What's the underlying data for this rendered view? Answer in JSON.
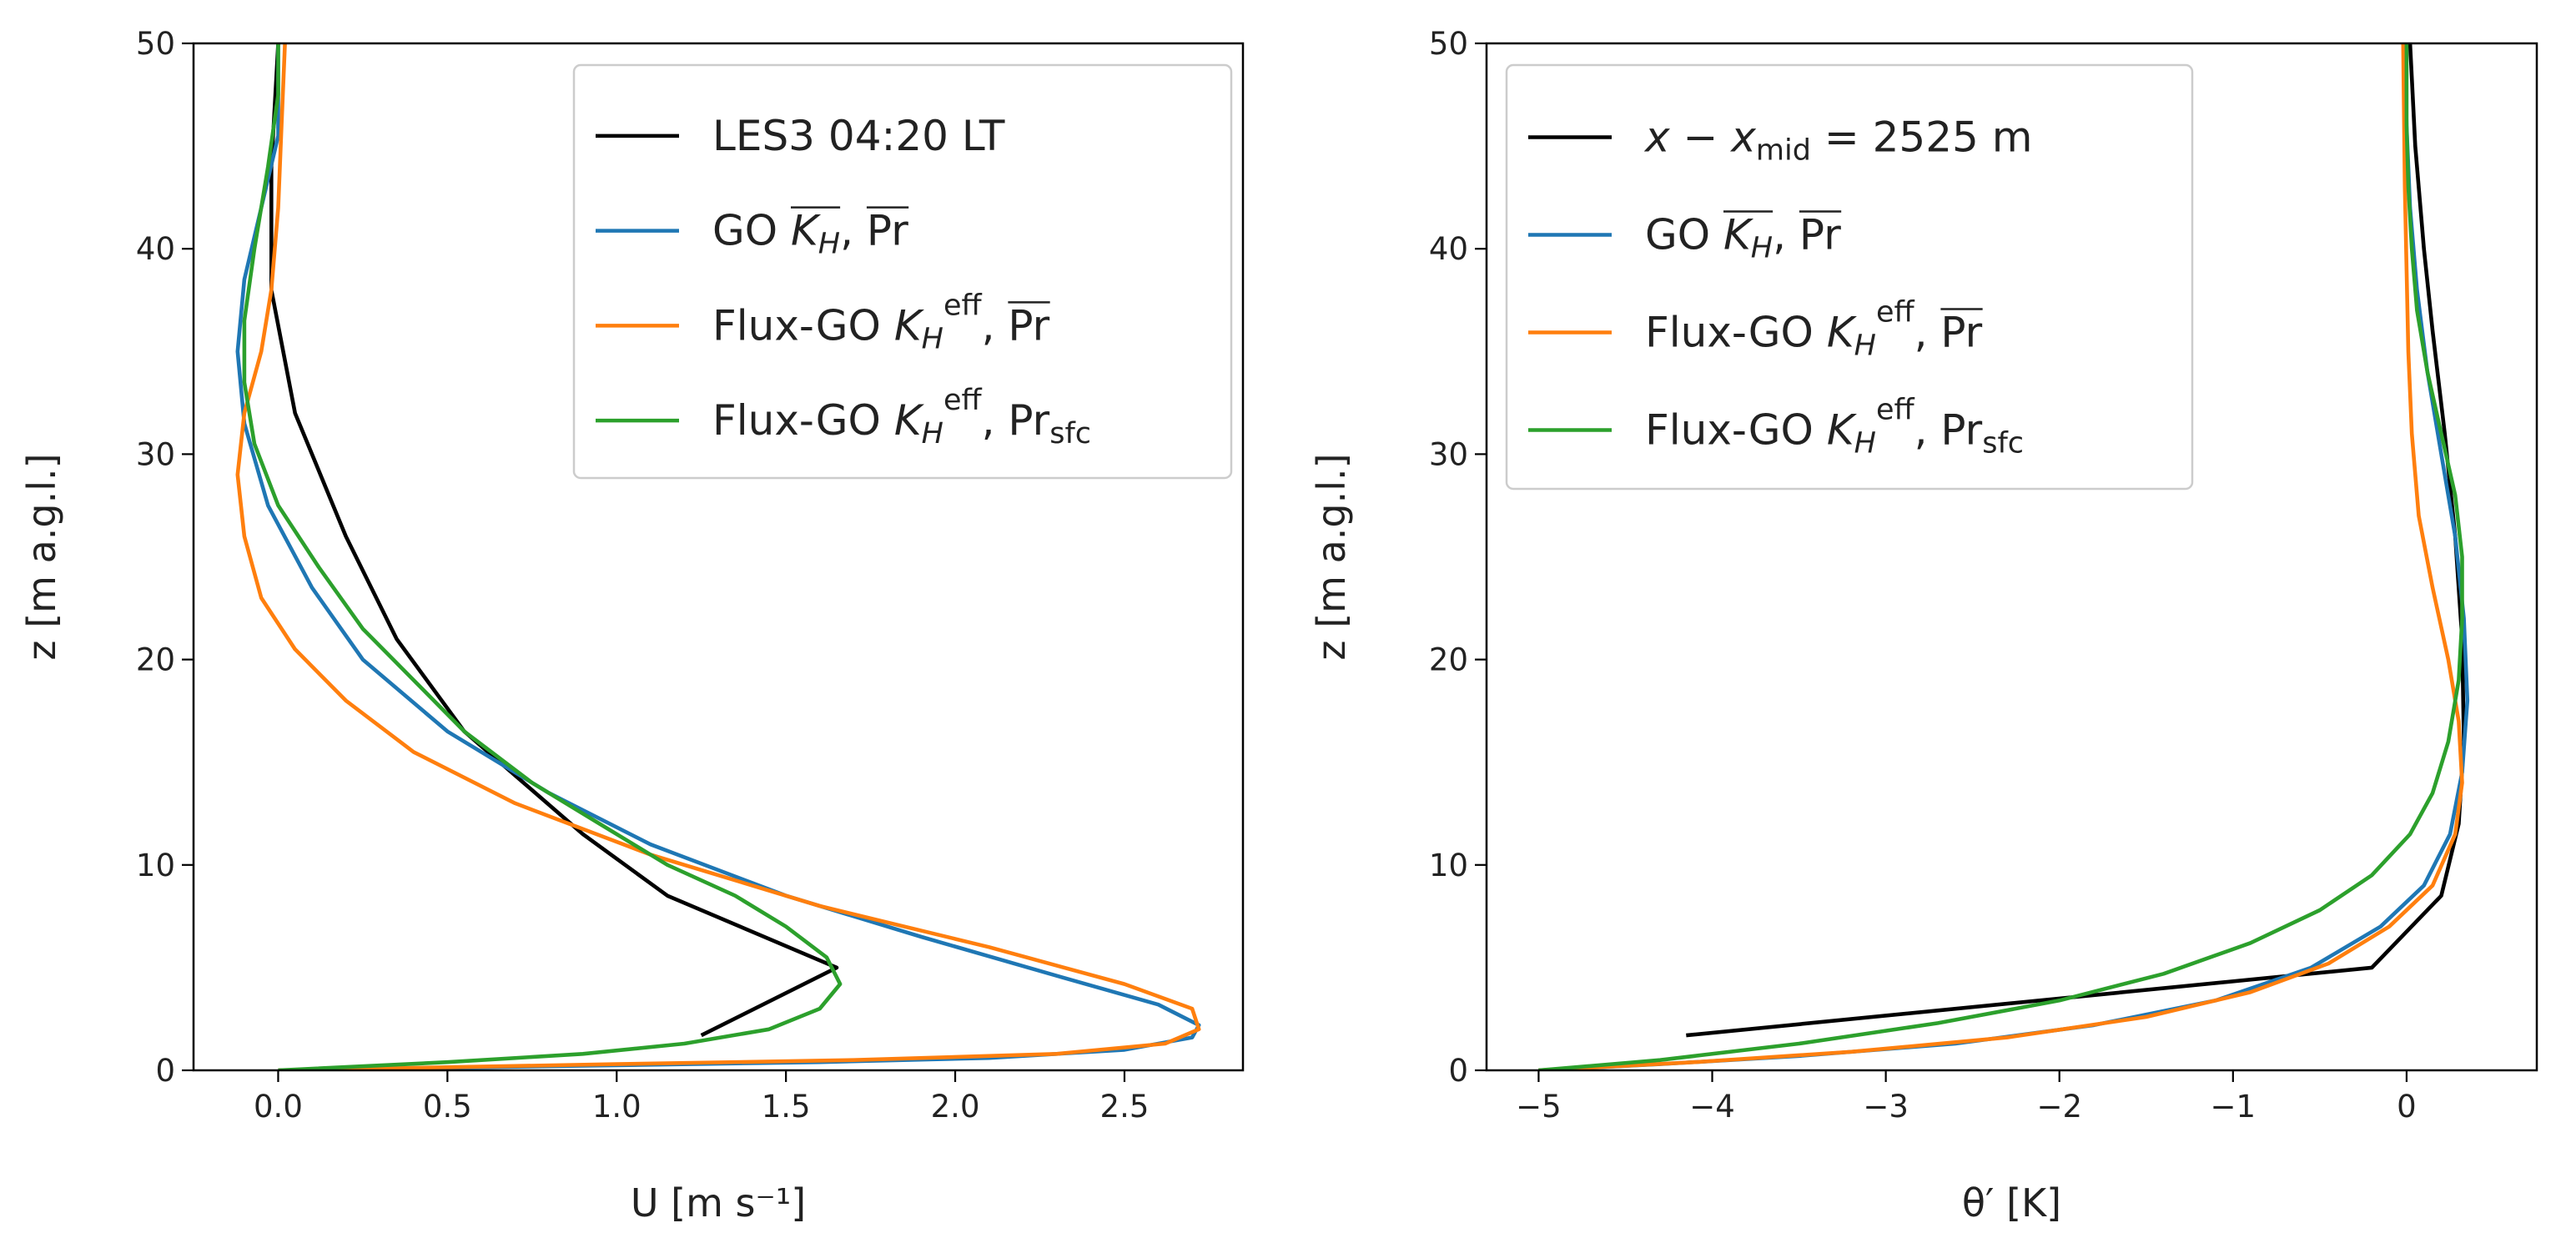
{
  "chart_data": [
    {
      "type": "line",
      "xlabel": "U [m s⁻¹]",
      "ylabel": "z [m a.g.l.]",
      "xlim": [
        -0.25,
        2.85
      ],
      "ylim": [
        0,
        50
      ],
      "xticks": [
        "0.0",
        "0.5",
        "1.0",
        "1.5",
        "2.0",
        "2.5"
      ],
      "yticks": [
        "0",
        "10",
        "20",
        "30",
        "40",
        "50"
      ],
      "legend_position": "top-right",
      "grid": false,
      "series": [
        {
          "name": "LES3 04:20 LT",
          "color": "#000000",
          "legend_parts": [
            {
              "t": "LES3 04:20 LT"
            }
          ],
          "points": [
            [
              1.25,
              1.7
            ],
            [
              1.65,
              5.0
            ],
            [
              1.15,
              8.5
            ],
            [
              0.9,
              11.5
            ],
            [
              0.55,
              16.5
            ],
            [
              0.35,
              21.0
            ],
            [
              0.2,
              26.0
            ],
            [
              0.05,
              32.0
            ],
            [
              -0.02,
              38.0
            ],
            [
              -0.02,
              44.0
            ],
            [
              0.0,
              50.0
            ]
          ]
        },
        {
          "name": "GO K_H, Pr",
          "color": "#1f77b4",
          "legend_parts": [
            {
              "t": "GO "
            },
            {
              "t": "K",
              "i": true,
              "ob": 1
            },
            {
              "t": "H",
              "i": true,
              "sub": true,
              "oe": 1
            },
            {
              "t": ", "
            },
            {
              "t": "Pr",
              "ob": 1,
              "oe": 1
            }
          ],
          "points": [
            [
              0.0,
              0.0
            ],
            [
              0.8,
              0.2
            ],
            [
              1.6,
              0.4
            ],
            [
              2.1,
              0.6
            ],
            [
              2.5,
              1.0
            ],
            [
              2.7,
              1.6
            ],
            [
              2.72,
              2.2
            ],
            [
              2.6,
              3.2
            ],
            [
              2.3,
              4.6
            ],
            [
              1.9,
              6.5
            ],
            [
              1.5,
              8.5
            ],
            [
              1.1,
              11.0
            ],
            [
              0.8,
              13.5
            ],
            [
              0.5,
              16.5
            ],
            [
              0.25,
              20.0
            ],
            [
              0.1,
              23.5
            ],
            [
              -0.03,
              27.5
            ],
            [
              -0.1,
              31.5
            ],
            [
              -0.12,
              35.0
            ],
            [
              -0.1,
              38.5
            ],
            [
              -0.05,
              42.0
            ],
            [
              0.0,
              45.5
            ],
            [
              0.0,
              50.0
            ]
          ]
        },
        {
          "name": "Flux-GO K_H^eff, Pr",
          "color": "#ff7f0e",
          "legend_parts": [
            {
              "t": "Flux-GO "
            },
            {
              "t": "K",
              "i": true
            },
            {
              "t": "H",
              "i": true,
              "sub": true
            },
            {
              "t": "eff",
              "sup": true
            },
            {
              "t": ", "
            },
            {
              "t": "Pr",
              "ob": 1,
              "oe": 1
            }
          ],
          "points": [
            [
              0.0,
              0.0
            ],
            [
              1.0,
              0.3
            ],
            [
              1.7,
              0.5
            ],
            [
              2.3,
              0.8
            ],
            [
              2.62,
              1.3
            ],
            [
              2.72,
              2.0
            ],
            [
              2.7,
              3.0
            ],
            [
              2.5,
              4.2
            ],
            [
              2.1,
              6.0
            ],
            [
              1.6,
              8.0
            ],
            [
              1.1,
              10.5
            ],
            [
              0.7,
              13.0
            ],
            [
              0.4,
              15.5
            ],
            [
              0.2,
              18.0
            ],
            [
              0.05,
              20.5
            ],
            [
              -0.05,
              23.0
            ],
            [
              -0.1,
              26.0
            ],
            [
              -0.12,
              29.0
            ],
            [
              -0.1,
              32.0
            ],
            [
              -0.05,
              35.0
            ],
            [
              -0.02,
              38.0
            ],
            [
              0.0,
              42.0
            ],
            [
              0.01,
              46.0
            ],
            [
              0.02,
              50.0
            ]
          ]
        },
        {
          "name": "Flux-GO K_H^eff, Pr_sfc",
          "color": "#2ca02c",
          "legend_parts": [
            {
              "t": "Flux-GO "
            },
            {
              "t": "K",
              "i": true
            },
            {
              "t": "H",
              "i": true,
              "sub": true
            },
            {
              "t": "eff",
              "sup": true
            },
            {
              "t": ", Pr"
            },
            {
              "t": "sfc",
              "sub": true
            }
          ],
          "points": [
            [
              0.0,
              0.0
            ],
            [
              0.5,
              0.4
            ],
            [
              0.9,
              0.8
            ],
            [
              1.2,
              1.3
            ],
            [
              1.45,
              2.0
            ],
            [
              1.6,
              3.0
            ],
            [
              1.66,
              4.2
            ],
            [
              1.62,
              5.5
            ],
            [
              1.5,
              7.0
            ],
            [
              1.35,
              8.5
            ],
            [
              1.15,
              10.0
            ],
            [
              0.95,
              12.0
            ],
            [
              0.75,
              14.0
            ],
            [
              0.55,
              16.5
            ],
            [
              0.4,
              19.0
            ],
            [
              0.25,
              21.5
            ],
            [
              0.12,
              24.5
            ],
            [
              0.0,
              27.5
            ],
            [
              -0.07,
              30.5
            ],
            [
              -0.1,
              33.5
            ],
            [
              -0.1,
              36.5
            ],
            [
              -0.07,
              40.0
            ],
            [
              -0.03,
              44.0
            ],
            [
              0.0,
              47.5
            ],
            [
              0.0,
              50.0
            ]
          ]
        }
      ]
    },
    {
      "type": "line",
      "xlabel": "θ′ [K]",
      "ylabel": "z [m a.g.l.]",
      "xlim": [
        -5.3,
        0.75
      ],
      "ylim": [
        0,
        50
      ],
      "xticks": [
        "−5",
        "−4",
        "−3",
        "−2",
        "−1",
        "0"
      ],
      "yticks": [
        "0",
        "10",
        "20",
        "30",
        "40",
        "50"
      ],
      "legend_position": "top-left",
      "grid": false,
      "series": [
        {
          "name": "x - x_mid = 2525 m",
          "color": "#000000",
          "legend_parts": [
            {
              "t": "x",
              "i": true
            },
            {
              "t": " − "
            },
            {
              "t": "x",
              "i": true
            },
            {
              "t": "mid",
              "sub": true
            },
            {
              "t": " = 2525 m"
            }
          ],
          "points": [
            [
              -4.15,
              1.7
            ],
            [
              -0.2,
              5.0
            ],
            [
              0.2,
              8.5
            ],
            [
              0.3,
              12.0
            ],
            [
              0.33,
              16.0
            ],
            [
              0.32,
              21.0
            ],
            [
              0.28,
              26.0
            ],
            [
              0.22,
              31.0
            ],
            [
              0.15,
              36.0
            ],
            [
              0.1,
              40.0
            ],
            [
              0.05,
              45.0
            ],
            [
              0.02,
              50.0
            ]
          ]
        },
        {
          "name": "GO K_H, Pr",
          "color": "#1f77b4",
          "legend_parts": [
            {
              "t": "GO "
            },
            {
              "t": "K",
              "i": true,
              "ob": 1
            },
            {
              "t": "H",
              "i": true,
              "sub": true,
              "oe": 1
            },
            {
              "t": ", "
            },
            {
              "t": "Pr",
              "ob": 1,
              "oe": 1
            }
          ],
          "points": [
            [
              -5.0,
              0.0
            ],
            [
              -4.3,
              0.3
            ],
            [
              -3.5,
              0.7
            ],
            [
              -2.6,
              1.3
            ],
            [
              -1.8,
              2.2
            ],
            [
              -1.1,
              3.4
            ],
            [
              -0.55,
              5.0
            ],
            [
              -0.15,
              7.0
            ],
            [
              0.1,
              9.0
            ],
            [
              0.25,
              11.5
            ],
            [
              0.32,
              14.5
            ],
            [
              0.35,
              18.0
            ],
            [
              0.33,
              22.0
            ],
            [
              0.28,
              26.0
            ],
            [
              0.2,
              30.0
            ],
            [
              0.12,
              34.0
            ],
            [
              0.06,
              38.0
            ],
            [
              0.02,
              42.0
            ],
            [
              0.0,
              46.0
            ],
            [
              -0.01,
              50.0
            ]
          ]
        },
        {
          "name": "Flux-GO K_H^eff, Pr",
          "color": "#ff7f0e",
          "legend_parts": [
            {
              "t": "Flux-GO "
            },
            {
              "t": "K",
              "i": true
            },
            {
              "t": "H",
              "i": true,
              "sub": true
            },
            {
              "t": "eff",
              "sup": true
            },
            {
              "t": ", "
            },
            {
              "t": "Pr",
              "ob": 1,
              "oe": 1
            }
          ],
          "points": [
            [
              -5.0,
              0.0
            ],
            [
              -4.1,
              0.4
            ],
            [
              -3.2,
              0.9
            ],
            [
              -2.3,
              1.6
            ],
            [
              -1.5,
              2.6
            ],
            [
              -0.9,
              3.8
            ],
            [
              -0.45,
              5.2
            ],
            [
              -0.1,
              7.0
            ],
            [
              0.15,
              9.0
            ],
            [
              0.28,
              11.5
            ],
            [
              0.32,
              14.0
            ],
            [
              0.3,
              17.0
            ],
            [
              0.24,
              20.0
            ],
            [
              0.15,
              23.5
            ],
            [
              0.07,
              27.0
            ],
            [
              0.03,
              31.0
            ],
            [
              0.01,
              35.0
            ],
            [
              0.0,
              39.0
            ],
            [
              -0.01,
              43.0
            ],
            [
              -0.02,
              50.0
            ]
          ]
        },
        {
          "name": "Flux-GO K_H^eff, Pr_sfc",
          "color": "#2ca02c",
          "legend_parts": [
            {
              "t": "Flux-GO "
            },
            {
              "t": "K",
              "i": true
            },
            {
              "t": "H",
              "i": true,
              "sub": true
            },
            {
              "t": "eff",
              "sup": true
            },
            {
              "t": ", Pr"
            },
            {
              "t": "sfc",
              "sub": true
            }
          ],
          "points": [
            [
              -5.0,
              0.0
            ],
            [
              -4.3,
              0.5
            ],
            [
              -3.5,
              1.3
            ],
            [
              -2.7,
              2.3
            ],
            [
              -2.0,
              3.4
            ],
            [
              -1.4,
              4.7
            ],
            [
              -0.9,
              6.2
            ],
            [
              -0.5,
              7.8
            ],
            [
              -0.2,
              9.5
            ],
            [
              0.02,
              11.5
            ],
            [
              0.15,
              13.5
            ],
            [
              0.24,
              16.0
            ],
            [
              0.3,
              19.0
            ],
            [
              0.32,
              22.0
            ],
            [
              0.32,
              25.0
            ],
            [
              0.28,
              28.0
            ],
            [
              0.2,
              31.0
            ],
            [
              0.12,
              34.0
            ],
            [
              0.06,
              37.0
            ],
            [
              0.03,
              40.0
            ],
            [
              0.01,
              43.0
            ],
            [
              0.0,
              46.0
            ],
            [
              0.0,
              50.0
            ]
          ]
        }
      ]
    }
  ]
}
